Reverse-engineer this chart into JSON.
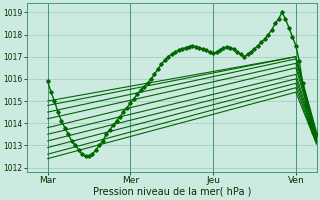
{
  "bg_color": "#cceae0",
  "grid_color": "#99ccbb",
  "line_color": "#006600",
  "xlabel": "Pression niveau de la mer( hPa )",
  "ylim": [
    1011.8,
    1019.4
  ],
  "xlim": [
    0,
    168
  ],
  "yticks": [
    1012,
    1013,
    1014,
    1015,
    1016,
    1017,
    1018,
    1019
  ],
  "xtick_labels": [
    "Mar",
    "Mer",
    "Jeu",
    "Ven"
  ],
  "xtick_positions": [
    12,
    60,
    108,
    156
  ],
  "vline_positions": [
    12,
    60,
    108,
    156
  ],
  "wavy_x": [
    12,
    14,
    16,
    18,
    20,
    22,
    24,
    26,
    28,
    30,
    32,
    34,
    36,
    38,
    40,
    42,
    44,
    46,
    48,
    50,
    52,
    54,
    56,
    58,
    60,
    62,
    64,
    66,
    68,
    70,
    72,
    74,
    76,
    78,
    80,
    82,
    84,
    86,
    88,
    90,
    92,
    94,
    96,
    98,
    100,
    102,
    104,
    106,
    108,
    110,
    112,
    114,
    116,
    118,
    120,
    122,
    124,
    126,
    128,
    130,
    132,
    134,
    136,
    138,
    140,
    142,
    144,
    146,
    148,
    150,
    152,
    154,
    156,
    158,
    160,
    162,
    164,
    166,
    168
  ],
  "wavy_y": [
    1015.9,
    1015.4,
    1015.0,
    1014.5,
    1014.1,
    1013.8,
    1013.5,
    1013.2,
    1013.0,
    1012.8,
    1012.6,
    1012.5,
    1012.5,
    1012.6,
    1012.8,
    1013.0,
    1013.2,
    1013.5,
    1013.7,
    1013.9,
    1014.1,
    1014.3,
    1014.5,
    1014.7,
    1014.9,
    1015.1,
    1015.3,
    1015.5,
    1015.65,
    1015.8,
    1016.0,
    1016.2,
    1016.45,
    1016.65,
    1016.85,
    1017.0,
    1017.1,
    1017.2,
    1017.3,
    1017.35,
    1017.4,
    1017.45,
    1017.5,
    1017.45,
    1017.4,
    1017.35,
    1017.3,
    1017.2,
    1017.15,
    1017.2,
    1017.3,
    1017.4,
    1017.45,
    1017.4,
    1017.35,
    1017.2,
    1017.1,
    1017.0,
    1017.1,
    1017.2,
    1017.35,
    1017.5,
    1017.65,
    1017.8,
    1018.0,
    1018.2,
    1018.5,
    1018.7,
    1019.0,
    1018.7,
    1018.3,
    1017.9,
    1017.5,
    1016.8,
    1015.8,
    1014.8,
    1014.0,
    1013.6,
    1013.5
  ],
  "forecast_lines": [
    {
      "x0": 12,
      "y0": 1015.0,
      "x1": 156,
      "y1": 1017.0,
      "x2": 168,
      "y2": 1013.6
    },
    {
      "x0": 12,
      "y0": 1014.8,
      "x1": 156,
      "y1": 1017.0,
      "x2": 168,
      "y2": 1013.5
    },
    {
      "x0": 12,
      "y0": 1014.5,
      "x1": 156,
      "y1": 1016.9,
      "x2": 168,
      "y2": 1013.4
    },
    {
      "x0": 12,
      "y0": 1014.2,
      "x1": 156,
      "y1": 1016.7,
      "x2": 168,
      "y2": 1013.35
    },
    {
      "x0": 12,
      "y0": 1013.8,
      "x1": 156,
      "y1": 1016.5,
      "x2": 168,
      "y2": 1013.3
    },
    {
      "x0": 12,
      "y0": 1013.5,
      "x1": 156,
      "y1": 1016.2,
      "x2": 168,
      "y2": 1013.25
    },
    {
      "x0": 12,
      "y0": 1013.2,
      "x1": 156,
      "y1": 1016.0,
      "x2": 168,
      "y2": 1013.2
    },
    {
      "x0": 12,
      "y0": 1012.9,
      "x1": 156,
      "y1": 1015.8,
      "x2": 168,
      "y2": 1013.15
    },
    {
      "x0": 12,
      "y0": 1012.6,
      "x1": 156,
      "y1": 1015.6,
      "x2": 168,
      "y2": 1013.1
    },
    {
      "x0": 12,
      "y0": 1012.4,
      "x1": 156,
      "y1": 1015.4,
      "x2": 168,
      "y2": 1013.05
    }
  ]
}
